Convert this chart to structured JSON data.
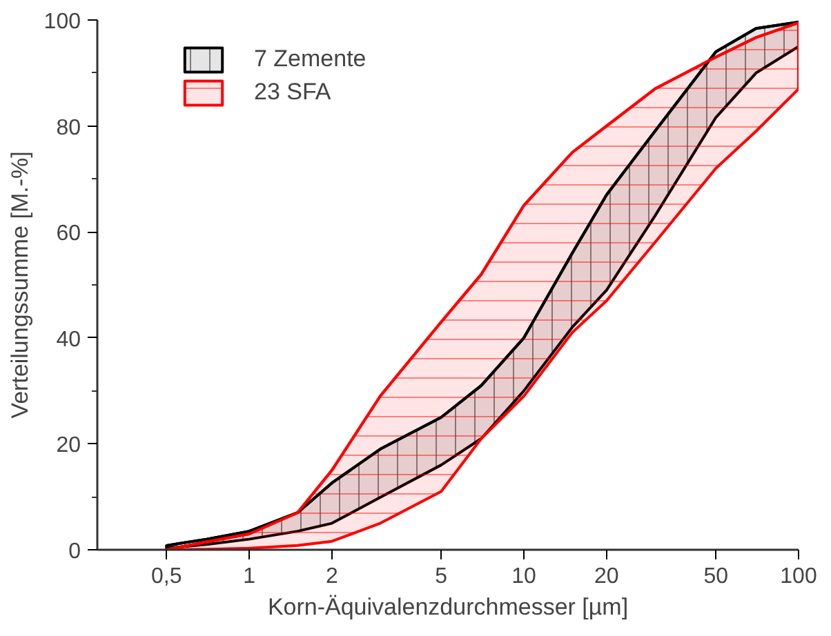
{
  "chart_data": {
    "type": "line",
    "xlabel": "Korn-Äquivalenzdurchmesser [µm]",
    "ylabel": "Verteilungssumme [M.-%]",
    "x": [
      0.5,
      0.7,
      1,
      1.5,
      2,
      3,
      5,
      7,
      10,
      15,
      20,
      30,
      50,
      70,
      100
    ],
    "series": [
      {
        "name": "7 Zemente",
        "color": "#000000",
        "values": [
          0.8,
          2,
          3.5,
          7,
          12.6,
          19,
          25,
          31,
          40,
          56,
          67,
          79,
          94,
          98.4,
          99.6
        ],
        "lower": [
          0.3,
          1,
          2,
          3.5,
          5,
          9.9,
          16,
          21,
          30,
          42,
          49,
          63,
          81.6,
          90,
          95
        ],
        "upper": [
          0.8,
          2,
          3.5,
          7,
          12.6,
          19,
          25,
          31,
          40,
          56,
          67,
          79,
          94,
          98.4,
          99.6
        ]
      },
      {
        "name": "23 SFA",
        "color": "#ff0000",
        "values": [
          0,
          1.5,
          3,
          7,
          15,
          29,
          43,
          52,
          65,
          75,
          80,
          87,
          93,
          96.7,
          99.5
        ],
        "lower": [
          0,
          0.1,
          0.3,
          0.8,
          1.6,
          5,
          11,
          21,
          29,
          41,
          47,
          58,
          72,
          79,
          87
        ],
        "upper": [
          0,
          1.5,
          3,
          7,
          15,
          29,
          43,
          52,
          65,
          75,
          80,
          87,
          93,
          96.7,
          99.5
        ]
      }
    ],
    "log": "x",
    "xlim": [
      0.28,
      100
    ],
    "xticks": [
      {
        "value": 0.5,
        "label": "0,5"
      },
      1,
      2,
      5,
      10,
      20,
      50,
      100
    ],
    "ylim": [
      0,
      100
    ],
    "yticks": [
      0,
      {
        "value": 10,
        "label": null
      },
      20,
      {
        "value": 30,
        "label": null
      },
      40,
      {
        "value": 50,
        "label": null
      },
      60,
      {
        "value": 70,
        "label": null
      },
      80,
      {
        "value": 90,
        "label": null
      },
      100
    ],
    "grid": false,
    "legend": "top left"
  }
}
